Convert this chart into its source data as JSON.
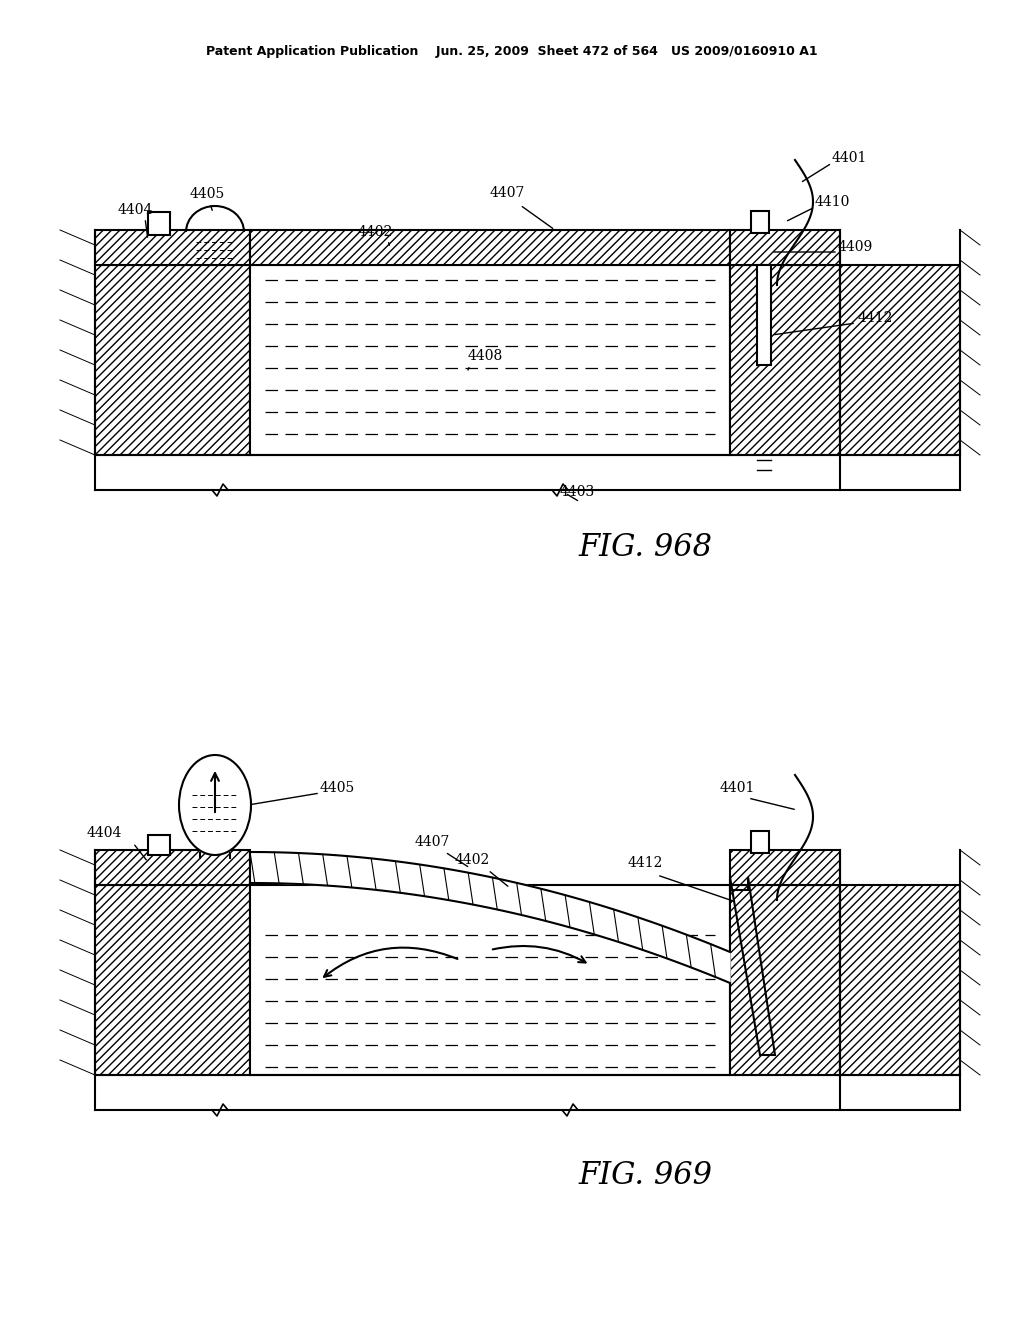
{
  "title_header": "Patent Application Publication    Jun. 25, 2009  Sheet 472 of 564   US 2009/0160910 A1",
  "fig1_label": "FIG. 968",
  "fig2_label": "FIG. 969",
  "bg_color": "#ffffff",
  "line_color": "#000000"
}
